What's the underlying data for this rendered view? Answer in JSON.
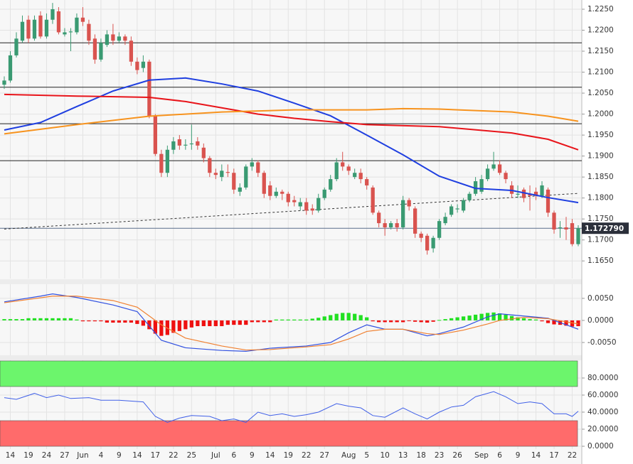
{
  "chart_data": [
    {
      "type": "candlestick",
      "categories": [
        null,
        "14",
        null,
        null,
        "19",
        null,
        null,
        "24",
        null,
        null,
        "27",
        null,
        null,
        "Jun",
        null,
        null,
        "4",
        null,
        null,
        "9",
        null,
        null,
        "14",
        null,
        null,
        "17",
        null,
        null,
        "22",
        null,
        null,
        "25",
        null,
        null,
        null,
        "Jul",
        null,
        null,
        "6",
        null,
        null,
        "9",
        null,
        null,
        "14",
        null,
        null,
        "19",
        null,
        null,
        "22",
        null,
        null,
        "27",
        null,
        null,
        null,
        "Aug",
        null,
        null,
        "5",
        null,
        null,
        "10",
        null,
        null,
        "13",
        null,
        null,
        "18",
        null,
        null,
        "23",
        null,
        null,
        "26",
        null,
        null,
        null,
        "Sep",
        null,
        null,
        "6",
        null,
        null,
        "9",
        null,
        null,
        "14",
        null,
        null,
        "17",
        null,
        null,
        "22",
        null
      ],
      "open": [
        1.207,
        1.208,
        1.214,
        1.2175,
        1.2225,
        1.218,
        1.2235,
        1.2185,
        1.2225,
        1.2245,
        1.219,
        1.2195,
        1.2195,
        1.223,
        1.2215,
        1.218,
        1.213,
        1.2165,
        1.219,
        1.2175,
        1.2185,
        1.2175,
        1.2125,
        1.211,
        1.2125,
        1.1995,
        1.1905,
        1.186,
        1.1915,
        1.194,
        1.1925,
        1.1928,
        1.1935,
        1.192,
        1.1895,
        1.186,
        1.185,
        1.1862,
        1.186,
        1.1815,
        1.1825,
        1.1875,
        1.1885,
        1.186,
        1.183,
        1.1805,
        1.1815,
        1.181,
        1.1795,
        1.178,
        1.179,
        1.1775,
        1.177,
        1.18,
        1.182,
        1.1845,
        1.1885,
        1.1875,
        1.185,
        1.186,
        1.1845,
        1.1825,
        1.1765,
        1.174,
        1.173,
        1.174,
        1.173,
        1.1795,
        1.1775,
        1.1715,
        1.171,
        1.168,
        1.1705,
        1.174,
        1.176,
        1.1773,
        1.177,
        1.1795,
        1.181,
        1.1815,
        1.1845,
        1.187,
        1.188,
        1.186,
        1.183,
        1.1808,
        1.182,
        1.181,
        1.1815,
        1.1805,
        1.182,
        1.1765,
        1.1728,
        1.173,
        1.174,
        1.169
      ],
      "high": [
        1.209,
        1.215,
        1.2195,
        1.2235,
        1.2235,
        1.2235,
        1.2245,
        1.224,
        1.2265,
        1.2255,
        1.2205,
        1.2205,
        1.224,
        1.2255,
        1.2225,
        1.219,
        1.218,
        1.22,
        1.2215,
        1.2195,
        1.219,
        1.2185,
        1.2135,
        1.214,
        1.213,
        1.2,
        1.1915,
        1.1925,
        1.1945,
        1.195,
        1.194,
        1.1975,
        1.1945,
        1.193,
        1.19,
        1.187,
        1.188,
        1.188,
        1.187,
        1.1835,
        1.188,
        1.1895,
        1.189,
        1.1865,
        1.184,
        1.1825,
        1.182,
        1.1815,
        1.1805,
        1.18,
        1.18,
        1.1785,
        1.181,
        1.1825,
        1.1855,
        1.1895,
        1.191,
        1.188,
        1.187,
        1.187,
        1.185,
        1.183,
        1.177,
        1.175,
        1.1745,
        1.175,
        1.1805,
        1.18,
        1.178,
        1.172,
        1.1715,
        1.171,
        1.175,
        1.1765,
        1.1785,
        1.1785,
        1.18,
        1.1815,
        1.185,
        1.1855,
        1.188,
        1.191,
        1.189,
        1.1865,
        1.184,
        1.183,
        1.1825,
        1.183,
        1.1825,
        1.184,
        1.1825,
        1.177,
        1.1745,
        1.1755,
        1.175,
        1.1735
      ],
      "low": [
        1.206,
        1.2075,
        1.2135,
        1.217,
        1.217,
        1.2175,
        1.218,
        1.218,
        1.2215,
        1.219,
        1.2185,
        1.215,
        1.219,
        1.221,
        1.2165,
        1.212,
        1.2125,
        1.216,
        1.2165,
        1.217,
        1.2165,
        1.2115,
        1.2095,
        1.21,
        1.199,
        1.19,
        1.185,
        1.185,
        1.1905,
        1.1915,
        1.1915,
        1.1915,
        1.1915,
        1.1885,
        1.185,
        1.1845,
        1.184,
        1.185,
        1.181,
        1.1805,
        1.182,
        1.1865,
        1.185,
        1.18,
        1.1795,
        1.18,
        1.1795,
        1.178,
        1.178,
        1.177,
        1.176,
        1.176,
        1.1765,
        1.1795,
        1.1815,
        1.184,
        1.1865,
        1.1855,
        1.1845,
        1.1835,
        1.182,
        1.176,
        1.173,
        1.171,
        1.1725,
        1.172,
        1.1725,
        1.177,
        1.1705,
        1.1695,
        1.1665,
        1.167,
        1.17,
        1.1735,
        1.1755,
        1.1765,
        1.1765,
        1.179,
        1.1805,
        1.181,
        1.184,
        1.1865,
        1.1855,
        1.1835,
        1.18,
        1.18,
        1.179,
        1.177,
        1.1795,
        1.18,
        1.1755,
        1.1715,
        1.1705,
        1.17,
        1.1685,
        1.1685
      ],
      "close": [
        1.208,
        1.214,
        1.218,
        1.222,
        1.218,
        1.2225,
        1.2185,
        1.2225,
        1.225,
        1.2195,
        1.2195,
        1.2197,
        1.223,
        1.222,
        1.2175,
        1.213,
        1.217,
        1.219,
        1.2175,
        1.2185,
        1.2175,
        1.2125,
        1.2105,
        1.2125,
        1.1995,
        1.1905,
        1.186,
        1.1915,
        1.1935,
        1.1925,
        1.1927,
        1.193,
        1.1925,
        1.1895,
        1.186,
        1.1855,
        1.1865,
        1.186,
        1.182,
        1.1825,
        1.1875,
        1.1885,
        1.186,
        1.181,
        1.1805,
        1.1815,
        1.181,
        1.179,
        1.179,
        1.179,
        1.177,
        1.177,
        1.18,
        1.182,
        1.1845,
        1.1885,
        1.1875,
        1.1865,
        1.186,
        1.1845,
        1.183,
        1.1765,
        1.174,
        1.173,
        1.174,
        1.173,
        1.1795,
        1.178,
        1.1715,
        1.1705,
        1.1675,
        1.1705,
        1.1745,
        1.1755,
        1.178,
        1.1775,
        1.1795,
        1.181,
        1.184,
        1.1845,
        1.187,
        1.188,
        1.186,
        1.1845,
        1.181,
        1.181,
        1.18,
        1.1805,
        1.1805,
        1.183,
        1.1765,
        1.1725,
        1.173,
        1.1725,
        1.169,
        1.1728
      ],
      "up_color": "#3a9a72",
      "down_color": "#d9534f",
      "moving_averages": [
        {
          "color": "#1f3fe0",
          "x": [
            0,
            6,
            12,
            18,
            24,
            30,
            36,
            42,
            48,
            54,
            60,
            66,
            72,
            78,
            84,
            90,
            95
          ],
          "values": [
            1.1962,
            1.198,
            1.2018,
            1.2055,
            1.2081,
            1.2086,
            1.2072,
            1.2055,
            1.2026,
            1.1996,
            1.195,
            1.1903,
            1.1852,
            1.1823,
            1.1818,
            1.1801,
            1.1789
          ]
        },
        {
          "color": "#e8141a",
          "x": [
            0,
            12,
            24,
            30,
            36,
            42,
            48,
            54,
            60,
            72,
            84,
            90,
            95
          ],
          "values": [
            1.2047,
            1.2043,
            1.204,
            1.203,
            1.2015,
            1.2,
            1.199,
            1.1982,
            1.1975,
            1.197,
            1.1955,
            1.194,
            1.1915
          ]
        },
        {
          "color": "#f7931e",
          "x": [
            0,
            12,
            24,
            36,
            48,
            60,
            66,
            72,
            84,
            90,
            95
          ],
          "values": [
            1.1953,
            1.1975,
            1.1995,
            1.2005,
            1.201,
            1.201,
            1.2013,
            1.2012,
            1.2005,
            1.1995,
            1.1983
          ]
        }
      ],
      "levels": [
        1.217,
        1.2064,
        1.1977,
        1.1889
      ],
      "trendline": {
        "x": [
          0,
          95
        ],
        "values": [
          1.1726,
          1.1811
        ]
      },
      "last_price": {
        "value": 1.17279,
        "label": "1.172790"
      },
      "ylim": [
        1.1608,
        1.2272
      ],
      "yticks": [
        {
          "value": 1.225,
          "label": "1.2250"
        },
        {
          "value": 1.22,
          "label": "1.2200"
        },
        {
          "value": 1.215,
          "label": "1.2150"
        },
        {
          "value": 1.21,
          "label": "1.2100"
        },
        {
          "value": 1.205,
          "label": "1.2050"
        },
        {
          "value": 1.2,
          "label": "1.2000"
        },
        {
          "value": 1.195,
          "label": "1.1950"
        },
        {
          "value": 1.19,
          "label": "1.1900"
        },
        {
          "value": 1.185,
          "label": "1.1850"
        },
        {
          "value": 1.18,
          "label": "1.1800"
        },
        {
          "value": 1.175,
          "label": "1.1750"
        },
        {
          "value": 1.17,
          "label": "1.1700"
        },
        {
          "value": 1.165,
          "label": "1.1650"
        }
      ]
    },
    {
      "type": "macd",
      "histogram": [
        0.0003,
        0.0003,
        0.0003,
        0.0003,
        0.0005,
        0.0005,
        0.0005,
        0.0005,
        0.0005,
        0.0005,
        0.0005,
        0.0005,
        0.0002,
        -0.0002,
        -0.0002,
        -0.0002,
        -0.0002,
        -0.0005,
        -0.0005,
        -0.0005,
        -0.0005,
        -0.0005,
        -0.0008,
        -0.0012,
        -0.002,
        -0.003,
        -0.0035,
        -0.0033,
        -0.0028,
        -0.0024,
        -0.002,
        -0.0016,
        -0.0013,
        -0.0013,
        -0.0013,
        -0.0013,
        -0.0013,
        -0.001,
        -0.001,
        -0.001,
        -0.001,
        -0.0004,
        -0.0004,
        -0.0004,
        -0.0004,
        0.0002,
        0.0002,
        0.0002,
        0.0002,
        0.0002,
        0.0002,
        0.0004,
        0.0006,
        0.0009,
        0.0012,
        0.0015,
        0.0017,
        0.0017,
        0.0015,
        0.0012,
        0.0007,
        -0.0002,
        -0.0004,
        -0.0004,
        -0.0004,
        -0.0004,
        -0.0004,
        -0.0001,
        -0.0003,
        -0.0004,
        -0.0005,
        -0.0003,
        0.0001,
        0.0003,
        0.0005,
        0.0007,
        0.0009,
        0.0011,
        0.0013,
        0.0015,
        0.0017,
        0.0018,
        0.0016,
        0.0013,
        0.001,
        0.0007,
        0.0005,
        0.0003,
        0.0002,
        -0.0002,
        -0.0006,
        -0.0009,
        -0.001,
        -0.0012,
        -0.0014,
        -0.0013
      ],
      "positive_color": "#22e022",
      "negative_color": "#ee1111",
      "lines": [
        {
          "color": "#3050e0",
          "x": [
            0,
            6,
            8,
            12,
            18,
            22,
            26,
            30,
            36,
            40,
            44,
            50,
            54,
            57,
            60,
            63,
            66,
            70,
            72,
            76,
            80,
            82,
            86,
            90,
            95
          ],
          "values": [
            0.0042,
            0.0055,
            0.006,
            0.0052,
            0.0035,
            0.002,
            -0.0045,
            -0.0062,
            -0.0068,
            -0.007,
            -0.0063,
            -0.0058,
            -0.005,
            -0.0028,
            -0.001,
            -0.002,
            -0.002,
            -0.0035,
            -0.003,
            -0.0015,
            0.0008,
            0.0015,
            0.001,
            0.0005,
            -0.002
          ]
        },
        {
          "color": "#f08030",
          "x": [
            0,
            8,
            12,
            18,
            22,
            26,
            30,
            36,
            40,
            44,
            50,
            54,
            57,
            60,
            63,
            66,
            70,
            72,
            76,
            80,
            82,
            86,
            90,
            95
          ],
          "values": [
            0.004,
            0.0055,
            0.0055,
            0.0045,
            0.003,
            -0.001,
            -0.004,
            -0.0058,
            -0.0067,
            -0.0066,
            -0.006,
            -0.0055,
            -0.0042,
            -0.0025,
            -0.002,
            -0.002,
            -0.003,
            -0.0032,
            -0.0022,
            -0.0008,
            0,
            0.0007,
            0.0004,
            -0.0008
          ]
        }
      ],
      "ylim": [
        -0.0079,
        0.0082
      ],
      "yticks": [
        {
          "value": 0.005,
          "label": "0.0050"
        },
        {
          "value": 0,
          "label": "0.0000"
        },
        {
          "value": -0.005,
          "label": "-0.0050"
        }
      ]
    },
    {
      "type": "rsi",
      "overbought_zone": [
        70,
        100
      ],
      "overbought_color": "#6cf56c",
      "oversold_zone": [
        0,
        30
      ],
      "oversold_color": "#ff6b6b",
      "line": {
        "color": "#4060e8",
        "x": [
          0,
          2,
          5,
          7,
          9,
          11,
          14,
          16,
          19,
          23,
          25,
          27,
          29,
          31,
          34,
          36,
          38,
          40,
          42,
          44,
          46,
          48,
          50,
          52,
          55,
          57,
          59,
          61,
          63,
          66,
          68,
          70,
          72,
          74,
          76,
          78,
          81,
          83,
          85,
          87,
          89,
          91,
          93,
          94,
          95
        ],
        "values": [
          57,
          55,
          62,
          57,
          60,
          56,
          57,
          54,
          54,
          52,
          35,
          28,
          33,
          36,
          35,
          30,
          32,
          28,
          40,
          36,
          38,
          35,
          37,
          40,
          50,
          47,
          45,
          36,
          34,
          45,
          38,
          32,
          40,
          46,
          48,
          58,
          64,
          58,
          50,
          52,
          50,
          38,
          38,
          35,
          41
        ]
      },
      "ylim": [
        -3.3,
        100.8
      ],
      "yticks": [
        {
          "value": 80,
          "label": "80.0000"
        },
        {
          "value": 60,
          "label": "60.0000"
        },
        {
          "value": 40,
          "label": "40.0000"
        },
        {
          "value": 20,
          "label": "20.0000"
        },
        {
          "value": 0,
          "label": "0.0000"
        }
      ]
    }
  ]
}
